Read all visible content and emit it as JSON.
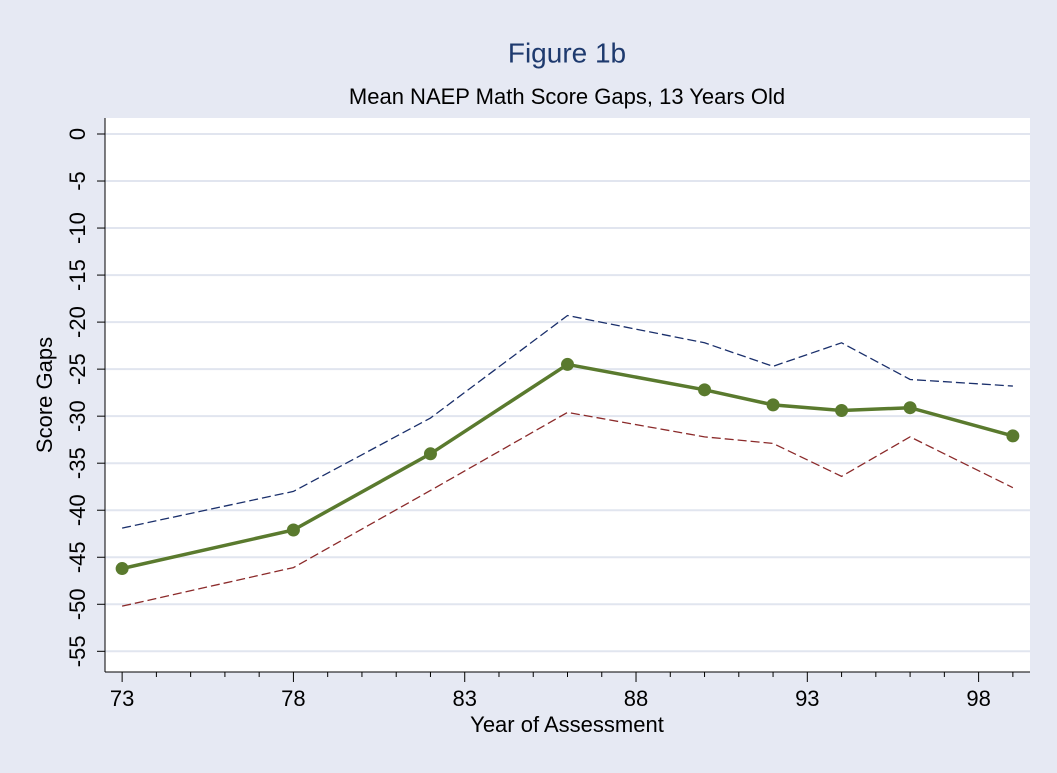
{
  "chart_data": {
    "type": "line",
    "title": "Figure 1b",
    "subtitle": "Mean NAEP Math Score Gaps, 13 Years Old",
    "x_label": "Year of Assessment",
    "y_label": "Score Gaps",
    "x": [
      73,
      78,
      82,
      86,
      90,
      92,
      94,
      96,
      99
    ],
    "series": [
      {
        "color": "#1a2f6b",
        "dash": true,
        "markers": false,
        "values": [
          -41.9,
          -38.0,
          -30.2,
          -19.3,
          -22.2,
          -24.7,
          -22.2,
          -26.1,
          -26.8
        ]
      },
      {
        "color": "#8b2a2a",
        "dash": true,
        "markers": false,
        "values": [
          -50.2,
          -46.1,
          -37.9,
          -29.6,
          -32.2,
          -32.9,
          -36.4,
          -32.2,
          -37.6
        ]
      },
      {
        "color": "#5a7a2e",
        "dash": false,
        "markers": true,
        "values": [
          -46.2,
          -42.1,
          -34.0,
          -24.5,
          -27.2,
          -28.8,
          -29.4,
          -29.1,
          -32.1
        ]
      }
    ],
    "xlim": [
      72.5,
      99.5
    ],
    "xticks": [
      73,
      78,
      83,
      88,
      93,
      98
    ],
    "xminorticks": [
      74,
      75,
      76,
      77,
      79,
      80,
      81,
      82,
      84,
      85,
      86,
      87,
      89,
      90,
      91,
      92,
      94,
      95,
      96,
      97,
      99
    ],
    "ylim": [
      -57.2,
      1.7
    ],
    "yticks": [
      0,
      -5,
      -10,
      -15,
      -20,
      -25,
      -30,
      -35,
      -40,
      -45,
      -50,
      -55
    ],
    "grid": true
  }
}
